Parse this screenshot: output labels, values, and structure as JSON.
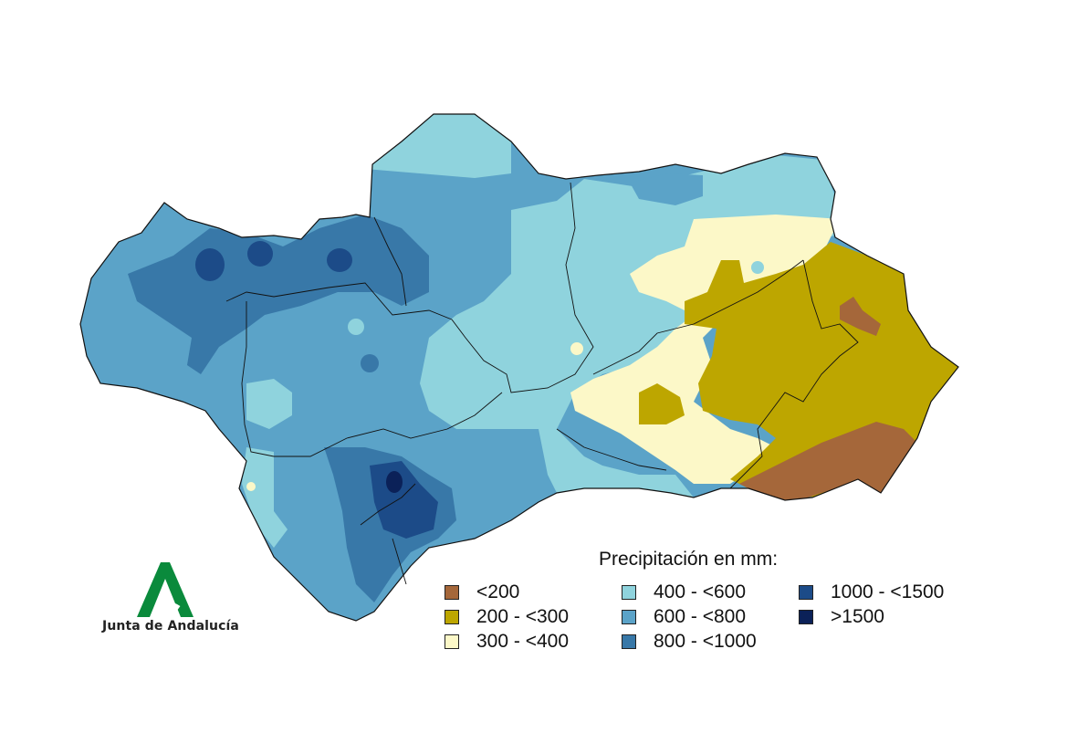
{
  "map": {
    "legend_title": "Precipitación en mm:",
    "classes": [
      {
        "label": "<200",
        "color": "#a5673a"
      },
      {
        "label": "200 - <300",
        "color": "#bda600"
      },
      {
        "label": "300 - <400",
        "color": "#fcf8c8"
      },
      {
        "label": "400 - <600",
        "color": "#8fd3dd"
      },
      {
        "label": "600 - <800",
        "color": "#5ba3c8"
      },
      {
        "label": "800 - <1000",
        "color": "#3878a8"
      },
      {
        "label": "1000 - <1500",
        "color": "#1c4b88"
      },
      {
        "label": ">1500",
        "color": "#0b2158"
      }
    ]
  },
  "logo": {
    "text": "Junta de Andalucía",
    "color": "#0a8a3c"
  }
}
